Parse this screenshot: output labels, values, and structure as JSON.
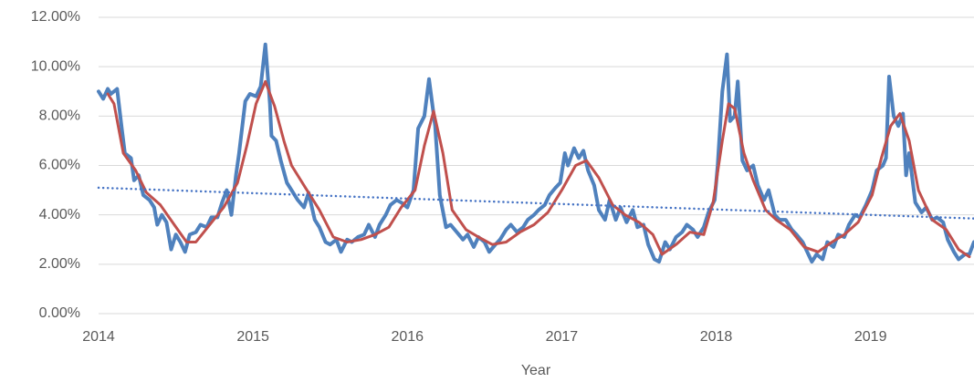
{
  "chart_data": {
    "type": "line",
    "x_label": "Year",
    "xlim": [
      2014,
      2019.67
    ],
    "xticks": [
      2014,
      2015,
      2016,
      2017,
      2018,
      2019
    ],
    "ylim": [
      0,
      12
    ],
    "yticks": [
      {
        "value": 0,
        "label": "0.00%"
      },
      {
        "value": 2,
        "label": "2.00%"
      },
      {
        "value": 4,
        "label": "4.00%"
      },
      {
        "value": 6,
        "label": "6.00%"
      },
      {
        "value": 8,
        "label": "8.00%"
      },
      {
        "value": 10,
        "label": "10.00%"
      },
      {
        "value": 12,
        "label": "12.00%"
      }
    ],
    "grid": true,
    "series": [
      {
        "color": "#4f81bd",
        "style": "solid",
        "width": 4,
        "x": [
          2014.0,
          2014.03,
          2014.06,
          2014.08,
          2014.12,
          2014.15,
          2014.17,
          2014.21,
          2014.23,
          2014.26,
          2014.29,
          2014.33,
          2014.36,
          2014.38,
          2014.41,
          2014.44,
          2014.47,
          2014.5,
          2014.53,
          2014.56,
          2014.59,
          2014.63,
          2014.66,
          2014.7,
          2014.73,
          2014.77,
          2014.8,
          2014.83,
          2014.86,
          2014.89,
          2014.91,
          2014.95,
          2014.98,
          2015.02,
          2015.05,
          2015.08,
          2015.11,
          2015.12,
          2015.15,
          2015.18,
          2015.22,
          2015.25,
          2015.29,
          2015.33,
          2015.36,
          2015.4,
          2015.43,
          2015.47,
          2015.5,
          2015.54,
          2015.57,
          2015.61,
          2015.64,
          2015.68,
          2015.72,
          2015.75,
          2015.79,
          2015.82,
          2015.86,
          2015.89,
          2015.93,
          2015.96,
          2016.0,
          2016.04,
          2016.07,
          2016.11,
          2016.14,
          2016.18,
          2016.21,
          2016.25,
          2016.28,
          2016.32,
          2016.36,
          2016.39,
          2016.43,
          2016.46,
          2016.5,
          2016.53,
          2016.57,
          2016.6,
          2016.64,
          2016.67,
          2016.71,
          2016.75,
          2016.78,
          2016.82,
          2016.85,
          2016.89,
          2016.92,
          2016.96,
          2016.99,
          2017.02,
          2017.04,
          2017.08,
          2017.11,
          2017.14,
          2017.17,
          2017.21,
          2017.24,
          2017.28,
          2017.31,
          2017.35,
          2017.38,
          2017.42,
          2017.46,
          2017.49,
          2017.53,
          2017.56,
          2017.6,
          2017.63,
          2017.67,
          2017.7,
          2017.74,
          2017.78,
          2017.81,
          2017.85,
          2017.88,
          2017.92,
          2017.95,
          2017.99,
          2018.01,
          2018.04,
          2018.07,
          2018.09,
          2018.12,
          2018.14,
          2018.17,
          2018.2,
          2018.24,
          2018.27,
          2018.31,
          2018.34,
          2018.38,
          2018.41,
          2018.45,
          2018.49,
          2018.52,
          2018.56,
          2018.59,
          2018.62,
          2018.65,
          2018.69,
          2018.72,
          2018.76,
          2018.79,
          2018.83,
          2018.86,
          2018.9,
          2018.93,
          2018.97,
          2019.01,
          2019.04,
          2019.08,
          2019.1,
          2019.12,
          2019.15,
          2019.18,
          2019.21,
          2019.23,
          2019.25,
          2019.29,
          2019.33,
          2019.36,
          2019.4,
          2019.43,
          2019.47,
          2019.5,
          2019.54,
          2019.57,
          2019.61,
          2019.64,
          2019.67
        ],
        "values": [
          9.0,
          8.7,
          9.1,
          8.9,
          9.1,
          7.5,
          6.5,
          6.3,
          5.4,
          5.6,
          4.8,
          4.6,
          4.3,
          3.6,
          4.0,
          3.7,
          2.6,
          3.2,
          2.9,
          2.5,
          3.2,
          3.3,
          3.6,
          3.5,
          3.9,
          3.9,
          4.5,
          5.0,
          4.0,
          5.6,
          6.5,
          8.6,
          8.9,
          8.8,
          9.2,
          10.9,
          8.5,
          7.2,
          7.0,
          6.2,
          5.3,
          5.0,
          4.6,
          4.3,
          4.9,
          3.8,
          3.5,
          2.9,
          2.8,
          3.0,
          2.5,
          3.0,
          2.9,
          3.1,
          3.2,
          3.6,
          3.1,
          3.6,
          4.0,
          4.4,
          4.6,
          4.5,
          4.3,
          5.0,
          7.5,
          8.0,
          9.5,
          7.6,
          4.8,
          3.5,
          3.6,
          3.3,
          3.0,
          3.2,
          2.7,
          3.1,
          2.9,
          2.5,
          2.8,
          3.0,
          3.4,
          3.6,
          3.3,
          3.5,
          3.8,
          4.0,
          4.2,
          4.4,
          4.8,
          5.1,
          5.3,
          6.5,
          6.0,
          6.7,
          6.3,
          6.6,
          5.8,
          5.2,
          4.2,
          3.8,
          4.6,
          3.8,
          4.3,
          3.7,
          4.2,
          3.5,
          3.6,
          2.8,
          2.2,
          2.1,
          2.9,
          2.6,
          3.1,
          3.3,
          3.6,
          3.4,
          3.1,
          3.5,
          4.1,
          4.6,
          6.0,
          9.0,
          10.5,
          7.8,
          8.0,
          9.4,
          6.2,
          5.8,
          6.0,
          5.2,
          4.6,
          5.0,
          4.0,
          3.8,
          3.8,
          3.4,
          3.2,
          2.9,
          2.5,
          2.1,
          2.4,
          2.2,
          2.9,
          2.7,
          3.2,
          3.1,
          3.6,
          4.0,
          3.9,
          4.4,
          5.0,
          5.8,
          6.0,
          6.3,
          9.6,
          8.0,
          7.6,
          8.1,
          5.6,
          6.5,
          4.5,
          4.1,
          4.3,
          3.8,
          3.9,
          3.7,
          3.0,
          2.5,
          2.2,
          2.4,
          2.4,
          2.9
        ]
      },
      {
        "color": "#c0504d",
        "style": "solid",
        "width": 3,
        "x": [
          2014.06,
          2014.1,
          2014.16,
          2014.24,
          2014.31,
          2014.4,
          2014.49,
          2014.57,
          2014.63,
          2014.72,
          2014.81,
          2014.9,
          2014.96,
          2015.02,
          2015.08,
          2015.14,
          2015.2,
          2015.25,
          2015.34,
          2015.43,
          2015.52,
          2015.61,
          2015.7,
          2015.79,
          2015.88,
          2015.96,
          2016.05,
          2016.11,
          2016.17,
          2016.23,
          2016.29,
          2016.38,
          2016.46,
          2016.55,
          2016.64,
          2016.73,
          2016.82,
          2016.91,
          2017.0,
          2017.09,
          2017.16,
          2017.24,
          2017.33,
          2017.41,
          2017.5,
          2017.59,
          2017.65,
          2017.74,
          2017.83,
          2017.92,
          2017.98,
          2018.04,
          2018.08,
          2018.12,
          2018.18,
          2018.24,
          2018.32,
          2018.39,
          2018.48,
          2018.57,
          2018.66,
          2018.75,
          2018.83,
          2018.92,
          2019.01,
          2019.07,
          2019.13,
          2019.19,
          2019.25,
          2019.31,
          2019.4,
          2019.49,
          2019.57,
          2019.64
        ],
        "values": [
          8.9,
          8.5,
          6.5,
          5.8,
          4.9,
          4.4,
          3.6,
          2.9,
          2.9,
          3.6,
          4.3,
          5.3,
          6.8,
          8.5,
          9.4,
          8.4,
          7.0,
          6.0,
          5.1,
          4.2,
          3.1,
          2.9,
          3.0,
          3.2,
          3.5,
          4.3,
          5.0,
          6.8,
          8.2,
          6.5,
          4.2,
          3.4,
          3.1,
          2.8,
          2.9,
          3.3,
          3.6,
          4.1,
          5.0,
          6.0,
          6.2,
          5.5,
          4.4,
          4.0,
          3.7,
          3.2,
          2.4,
          2.8,
          3.3,
          3.2,
          4.5,
          7.0,
          8.5,
          8.3,
          6.5,
          5.4,
          4.2,
          3.8,
          3.4,
          2.7,
          2.5,
          2.9,
          3.2,
          3.7,
          4.8,
          6.3,
          7.6,
          8.1,
          7.0,
          5.0,
          3.8,
          3.4,
          2.6,
          2.3
        ]
      },
      {
        "color": "#4472c4",
        "style": "dotted",
        "width": 2.5,
        "x": [
          2014,
          2019.67
        ],
        "values": [
          5.1,
          3.85
        ]
      }
    ]
  }
}
